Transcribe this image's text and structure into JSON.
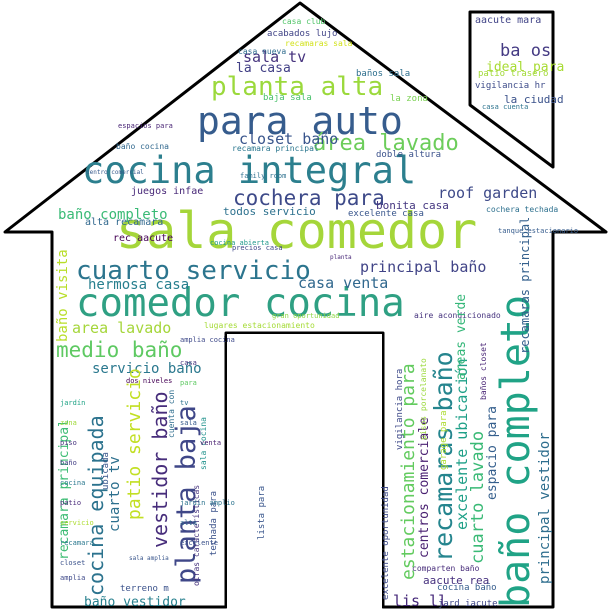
{
  "words": [
    {
      "text": "sala comedor",
      "c": "#a5d63a"
    },
    {
      "text": "comedor cocina",
      "c": "#2fa083"
    },
    {
      "text": "cocina integral",
      "c": "#2c7f8e"
    },
    {
      "text": "para auto",
      "c": "#365c8d"
    },
    {
      "text": "cuarto servicio",
      "c": "#2c758e"
    },
    {
      "text": "planta alta",
      "c": "#9bd93c"
    },
    {
      "text": "área lavado",
      "c": "#6ccd5a"
    },
    {
      "text": "cochera para",
      "c": "#3e4a89"
    },
    {
      "text": "medio baño",
      "c": "#5ec962"
    },
    {
      "text": "hermosa casa",
      "c": "#277f8e"
    },
    {
      "text": "principal baño",
      "c": "#414487"
    },
    {
      "text": "casa venta",
      "c": "#31688e"
    },
    {
      "text": "baño completo",
      "c": "#3aba76"
    },
    {
      "text": "area lavado",
      "c": "#a5d63a"
    },
    {
      "text": "servicio baño",
      "c": "#2a788e"
    },
    {
      "text": "sala tv",
      "c": "#46337e"
    },
    {
      "text": "la casa",
      "c": "#424086"
    },
    {
      "text": "closet baño",
      "c": "#39558c"
    },
    {
      "text": "baño completo",
      "c": "#20a386"
    },
    {
      "text": "roof garden",
      "c": "#3e4a89"
    },
    {
      "text": "bonita casa",
      "c": "#453781"
    },
    {
      "text": "todos servicio",
      "c": "#2d718e"
    },
    {
      "text": "juegos infae",
      "c": "#482878"
    },
    {
      "text": "alta recamara",
      "c": "#31688e"
    },
    {
      "text": "baño visita",
      "c": "#b8de29"
    },
    {
      "text": "patio servicio",
      "c": "#c2df23"
    },
    {
      "text": "planta baja",
      "c": "#3f4788"
    },
    {
      "text": "vestidor baño",
      "c": "#472d7b"
    },
    {
      "text": "cocina equipada",
      "c": "#2c738e"
    },
    {
      "text": "recamaras baño",
      "c": "#25858e"
    },
    {
      "text": "estacionamiento para",
      "c": "#63cb5f"
    },
    {
      "text": "centros comerciale",
      "c": "#481f70"
    },
    {
      "text": "excelente ubicación",
      "c": "#1fa088"
    },
    {
      "text": "espacio para",
      "c": "#355f8d"
    },
    {
      "text": "cuarto lavado",
      "c": "#3aba76"
    },
    {
      "text": "recamaras principal",
      "c": "#34608d"
    },
    {
      "text": "principal vestidor",
      "c": "#2e6e8e"
    },
    {
      "text": "baño vestidor",
      "c": "#27808e"
    },
    {
      "text": "recamara principal",
      "c": "#3dbc74"
    },
    {
      "text": "cuarto tv",
      "c": "#2d708e"
    },
    {
      "text": "lis ll",
      "c": "#472a7a"
    },
    {
      "text": "aacute rea",
      "c": "#46307e"
    },
    {
      "text": "cocina baño",
      "c": "#365d8d"
    },
    {
      "text": "aacute mara",
      "c": "#414487"
    },
    {
      "text": "ba os",
      "c": "#443a83"
    },
    {
      "text": "ideal para",
      "c": "#a8db34"
    },
    {
      "text": "la ciudad",
      "c": "#3b528b"
    },
    {
      "text": "vigilancia hr",
      "c": "#3e4c8a"
    },
    {
      "text": "baños sala",
      "c": "#2e6f8e"
    },
    {
      "text": "baja sala",
      "c": "#4ac16d"
    },
    {
      "text": "la zona",
      "c": "#7ad151"
    },
    {
      "text": "recamara principal",
      "c": "#2a768e"
    },
    {
      "text": "rec aacute",
      "c": "#440154"
    },
    {
      "text": "acabados lujo",
      "c": "#414487"
    },
    {
      "text": "casa club",
      "c": "#52c569"
    },
    {
      "text": "recamaras sala",
      "c": "#d2e21b"
    },
    {
      "text": "excelente casa",
      "c": "#39568c"
    },
    {
      "text": "doble altura",
      "c": "#3b528b"
    },
    {
      "text": "cochera techada",
      "c": "#2d708e"
    },
    {
      "text": "tanque estacionario",
      "c": "#365c8d"
    },
    {
      "text": "lugares estacionamiento",
      "c": "#a5db36"
    },
    {
      "text": "areas verde",
      "c": "#35b779"
    },
    {
      "text": "aire acondicionado",
      "c": "#46337e"
    },
    {
      "text": "garage para",
      "c": "#addc30"
    },
    {
      "text": "baños closet",
      "c": "#482475"
    },
    {
      "text": "excelente oportunidad",
      "c": "#3e4a89"
    },
    {
      "text": "lista para",
      "c": "#39568c"
    },
    {
      "text": "techada para",
      "c": "#3b528b"
    },
    {
      "text": "comparten baño",
      "c": "#472c7a"
    },
    {
      "text": "jard iacute",
      "c": "#3f4788"
    },
    {
      "text": "sala cocina",
      "c": "#20928c"
    },
    {
      "text": "vigilancia hora",
      "c": "#3e4a89"
    },
    {
      "text": "gran oportunidad",
      "c": "#8fd744"
    },
    {
      "text": "family room",
      "c": "#2d708e"
    },
    {
      "text": "precios casa",
      "c": "#3f4889"
    },
    {
      "text": "patio trasero",
      "c": "#a2da37"
    },
    {
      "text": "espacios para",
      "c": "#482475"
    },
    {
      "text": "baño cocina",
      "c": "#31688e"
    },
    {
      "text": "casa nueva",
      "c": "#2f6c8e"
    },
    {
      "text": "dos niveles",
      "c": "#440154"
    },
    {
      "text": "cuenta con",
      "c": "#2e6e8e"
    },
    {
      "text": "terreno m",
      "c": "#3b528b"
    },
    {
      "text": "ubicada",
      "c": "#39568c"
    },
    {
      "text": "amplia cocina",
      "c": "#3e4989"
    },
    {
      "text": "otras características",
      "c": "#46337e"
    },
    {
      "text": "casa cuenta",
      "c": "#2c738e"
    },
    {
      "text": "pisos porcelanato",
      "c": "#9bd93c"
    },
    {
      "text": "centro comercial",
      "c": "#375b8d"
    },
    {
      "text": "sala amplia",
      "c": "#39568c"
    },
    {
      "text": "jardín",
      "c": "#20a386"
    },
    {
      "text": "zona",
      "c": "#a0da39"
    },
    {
      "text": "piso",
      "c": "#46337e"
    },
    {
      "text": "baño",
      "c": "#433e85"
    },
    {
      "text": "cocina",
      "c": "#2a788e"
    },
    {
      "text": "patio",
      "c": "#482878"
    },
    {
      "text": "servicio",
      "c": "#addc30"
    },
    {
      "text": "recamara",
      "c": "#2a788e"
    },
    {
      "text": "closet",
      "c": "#3b528b"
    },
    {
      "text": "amplia",
      "c": "#3e4989"
    },
    {
      "text": "casa",
      "c": "#46337e"
    },
    {
      "text": "para",
      "c": "#5ec962"
    },
    {
      "text": "tv",
      "c": "#2c728e"
    },
    {
      "text": "sala",
      "c": "#375a8c"
    },
    {
      "text": "venta",
      "c": "#481f70"
    },
    {
      "text": "jardín amplio",
      "c": "#2c738e"
    },
    {
      "text": "cocina abierta",
      "c": "#1f988b"
    },
    {
      "text": "planta",
      "c": "#482878"
    },
    {
      "text": "alta",
      "c": "#31688e"
    },
    {
      "text": "excelente",
      "c": "#3b528b"
    }
  ]
}
